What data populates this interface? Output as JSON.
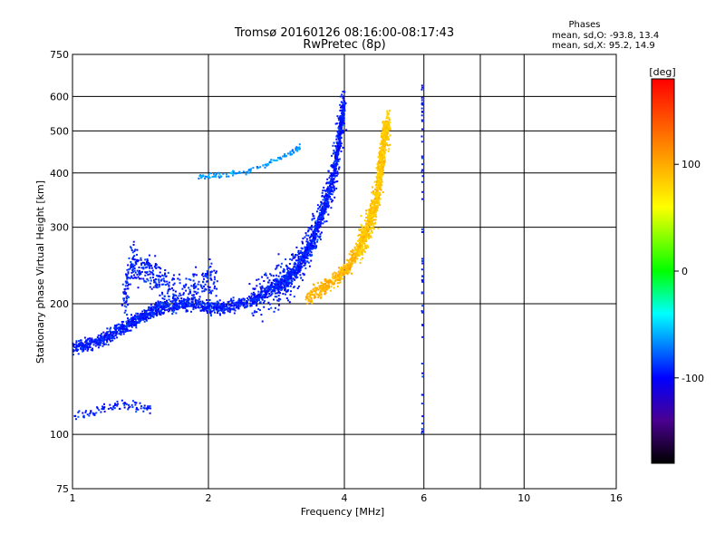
{
  "chart_data": {
    "type": "scatter",
    "title": "Tromsø 20160126 08:16:00-08:17:43",
    "subtitle": "RwPretec (8p)",
    "xlabel": "Frequency [MHz]",
    "ylabel": "Stationary phase Virtual Height [km]",
    "x_scale": "log",
    "y_scale": "log",
    "xlim": [
      1,
      16
    ],
    "ylim": [
      75,
      750
    ],
    "x_ticks": [
      1,
      2,
      4,
      6,
      8,
      10,
      16
    ],
    "x_tick_labels": [
      "1",
      "2",
      "4",
      "6",
      "",
      "10",
      "16"
    ],
    "y_ticks": [
      75,
      100,
      200,
      300,
      400,
      500,
      600,
      750
    ],
    "y_tick_labels": [
      "75",
      "100",
      "200",
      "300",
      "400",
      "500",
      "600",
      "750"
    ],
    "grid": true,
    "phase_stats": {
      "heading": "Phases",
      "line_o": "mean, sd,O:  -93.8, 13.4",
      "line_x": "mean, sd,X:  95.2, 14.9"
    },
    "colorbar": {
      "label": "[deg]",
      "range": [
        -180,
        180
      ],
      "ticks": [
        100,
        0,
        -100
      ],
      "tick_labels": [
        "100",
        "0",
        "-100"
      ],
      "stops": [
        {
          "deg": -180,
          "color": "#000000"
        },
        {
          "deg": -140,
          "color": "#4a0090"
        },
        {
          "deg": -100,
          "color": "#0000ff"
        },
        {
          "deg": -40,
          "color": "#00ffff"
        },
        {
          "deg": 0,
          "color": "#00ff00"
        },
        {
          "deg": 60,
          "color": "#ffff00"
        },
        {
          "deg": 120,
          "color": "#ff8000"
        },
        {
          "deg": 180,
          "color": "#ff0000"
        }
      ]
    },
    "series": [
      {
        "name": "O",
        "phase_mean": -93.8,
        "trace": [
          [
            1.0,
            158
          ],
          [
            1.1,
            162
          ],
          [
            1.2,
            168
          ],
          [
            1.3,
            176
          ],
          [
            1.4,
            185
          ],
          [
            1.5,
            192
          ],
          [
            1.6,
            197
          ],
          [
            1.8,
            200
          ],
          [
            2.0,
            196
          ],
          [
            2.2,
            196
          ],
          [
            2.5,
            204
          ],
          [
            2.8,
            218
          ],
          [
            3.0,
            228
          ],
          [
            3.2,
            248
          ],
          [
            3.4,
            280
          ],
          [
            3.6,
            330
          ],
          [
            3.8,
            400
          ],
          [
            3.9,
            480
          ],
          [
            4.0,
            580
          ]
        ],
        "spread_trace": [
          [
            1.3,
            200
          ],
          [
            1.35,
            250
          ],
          [
            1.45,
            240
          ],
          [
            1.55,
            230
          ],
          [
            1.7,
            210
          ],
          [
            1.9,
            220
          ],
          [
            2.1,
            230
          ]
        ],
        "upper_trace": [
          [
            1.9,
            390
          ],
          [
            2.1,
            395
          ],
          [
            2.4,
            400
          ],
          [
            2.7,
            420
          ],
          [
            3.0,
            440
          ],
          [
            3.2,
            460
          ]
        ],
        "lowE_trace": [
          [
            1.0,
            110
          ],
          [
            1.1,
            112
          ],
          [
            1.2,
            115
          ],
          [
            1.3,
            118
          ],
          [
            1.4,
            115
          ],
          [
            1.5,
            115
          ]
        ]
      },
      {
        "name": "X",
        "phase_mean": 95.2,
        "trace": [
          [
            3.3,
            205
          ],
          [
            3.6,
            218
          ],
          [
            3.9,
            232
          ],
          [
            4.1,
            245
          ],
          [
            4.3,
            265
          ],
          [
            4.5,
            300
          ],
          [
            4.7,
            340
          ],
          [
            4.8,
            400
          ],
          [
            4.9,
            480
          ],
          [
            5.0,
            520
          ]
        ]
      }
    ]
  }
}
